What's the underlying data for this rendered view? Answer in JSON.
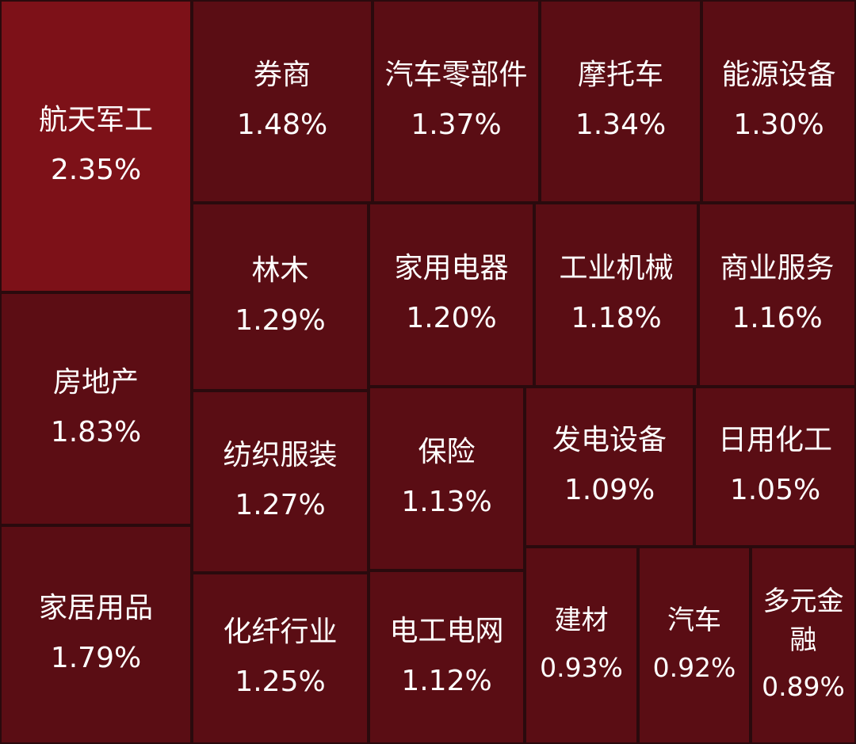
{
  "chart_data": {
    "type": "treemap",
    "items": [
      {
        "name": "航天军工",
        "value": "2.35%",
        "color": "#7d1118"
      },
      {
        "name": "房地产",
        "value": "1.83%",
        "color": "#5c0d14"
      },
      {
        "name": "家居用品",
        "value": "1.79%",
        "color": "#5a0d14"
      },
      {
        "name": "券商",
        "value": "1.48%",
        "color": "#5a0d14"
      },
      {
        "name": "汽车零部件",
        "value": "1.37%",
        "color": "#5a0d14"
      },
      {
        "name": "摩托车",
        "value": "1.34%",
        "color": "#5a0d14"
      },
      {
        "name": "能源设备",
        "value": "1.30%",
        "color": "#5a0d14"
      },
      {
        "name": "林木",
        "value": "1.29%",
        "color": "#5a0d14"
      },
      {
        "name": "家用电器",
        "value": "1.20%",
        "color": "#5a0d14"
      },
      {
        "name": "工业机械",
        "value": "1.18%",
        "color": "#5a0d14"
      },
      {
        "name": "商业服务",
        "value": "1.16%",
        "color": "#5a0d14"
      },
      {
        "name": "纺织服装",
        "value": "1.27%",
        "color": "#5a0d14"
      },
      {
        "name": "保险",
        "value": "1.13%",
        "color": "#5a0d14"
      },
      {
        "name": "发电设备",
        "value": "1.09%",
        "color": "#5a0d14"
      },
      {
        "name": "日用化工",
        "value": "1.05%",
        "color": "#5a0d14"
      },
      {
        "name": "化纤行业",
        "value": "1.25%",
        "color": "#5a0d14"
      },
      {
        "name": "电工电网",
        "value": "1.12%",
        "color": "#5a0d14"
      },
      {
        "name": "建材",
        "value": "0.93%",
        "color": "#5a0d14"
      },
      {
        "name": "汽车",
        "value": "0.92%",
        "color": "#5a0d14"
      },
      {
        "name": "多元金融",
        "value": "0.89%",
        "color": "#5a0d14"
      }
    ]
  }
}
